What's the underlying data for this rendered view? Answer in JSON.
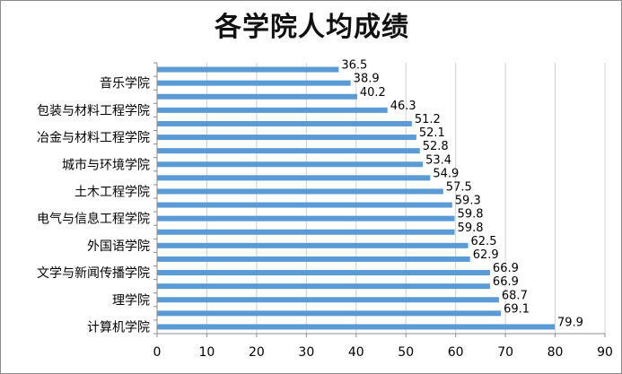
{
  "chart_data": {
    "type": "bar",
    "orientation": "horizontal",
    "title": "各学院人均成绩",
    "categories": [
      "计算机学院",
      "",
      "理学院",
      "",
      "文学与新闻传播学院",
      "",
      "外国语学院",
      "",
      "电气与信息工程学院",
      "",
      "土木工程学院",
      "",
      "城市与环境学院",
      "",
      "冶金与材料工程学院",
      "",
      "包装与材料工程学院",
      "",
      "音乐学院",
      ""
    ],
    "values": [
      79.9,
      69.1,
      68.7,
      66.9,
      66.9,
      62.9,
      62.5,
      59.8,
      59.8,
      59.3,
      57.5,
      54.9,
      53.4,
      52.8,
      52.1,
      51.2,
      46.3,
      40.2,
      38.9,
      36.5
    ],
    "data_labels": [
      "79.9",
      "69.1",
      "68.7",
      "66.9",
      "66.9",
      "62.9",
      "62.5",
      "59.8",
      "59.8",
      "59.3",
      "57.5",
      "54.9",
      "53.4",
      "52.8",
      "52.1",
      "51.2",
      "46.3",
      "40.2",
      "38.9",
      "36.5"
    ],
    "xlim": [
      0,
      90
    ],
    "x_ticks": [
      0,
      10,
      20,
      30,
      40,
      50,
      60,
      70,
      80,
      90
    ],
    "x_tick_labels": [
      "0",
      "10",
      "20",
      "30",
      "40",
      "50",
      "60",
      "70",
      "80",
      "90"
    ],
    "grid": true,
    "legend": "none",
    "xlabel": "",
    "ylabel": "",
    "colors": {
      "bar": "#5b9bd5",
      "grid": "#d0d0d0",
      "axis": "#8c8c8c",
      "text": "#000000"
    }
  }
}
